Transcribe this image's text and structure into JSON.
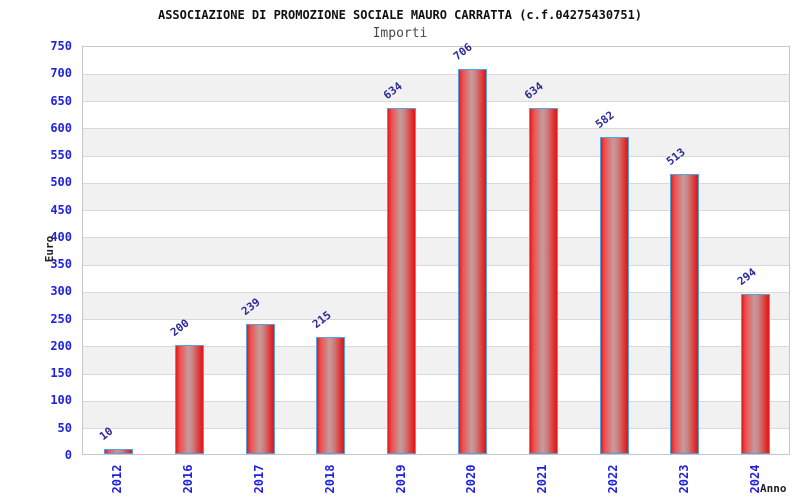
{
  "header": {
    "title": "ASSOCIAZIONE DI PROMOZIONE SOCIALE MAURO CARRATTA (c.f.04275430751)",
    "subtitle": "Importi"
  },
  "chart_data": {
    "type": "bar",
    "title": "ASSOCIAZIONE DI PROMOZIONE SOCIALE MAURO CARRATTA (c.f.04275430751)",
    "subtitle": "Importi",
    "categories": [
      "2012",
      "2016",
      "2017",
      "2018",
      "2019",
      "2020",
      "2021",
      "2022",
      "2023",
      "2024"
    ],
    "values": [
      10,
      200,
      239,
      215,
      634,
      706,
      634,
      582,
      513,
      294
    ],
    "xlabel": "Anno",
    "ylabel": "Euro",
    "ylim": [
      0,
      750
    ],
    "ytick_step": 50,
    "grid": true,
    "legend": false,
    "band_alternation": true
  },
  "colors": {
    "bar_fill": "#e31b1b",
    "bar_fill_center": "#c59c9c",
    "bar_border": "#55a1d9",
    "tick_label": "#2222dd",
    "value_label": "#2b2b9b",
    "band_gray": "#f1f1f1",
    "gridline": "#d9d9d9",
    "plot_border": "#c6c6c6",
    "title_color": "#111111",
    "subtitle_color": "#4a4a4a"
  }
}
